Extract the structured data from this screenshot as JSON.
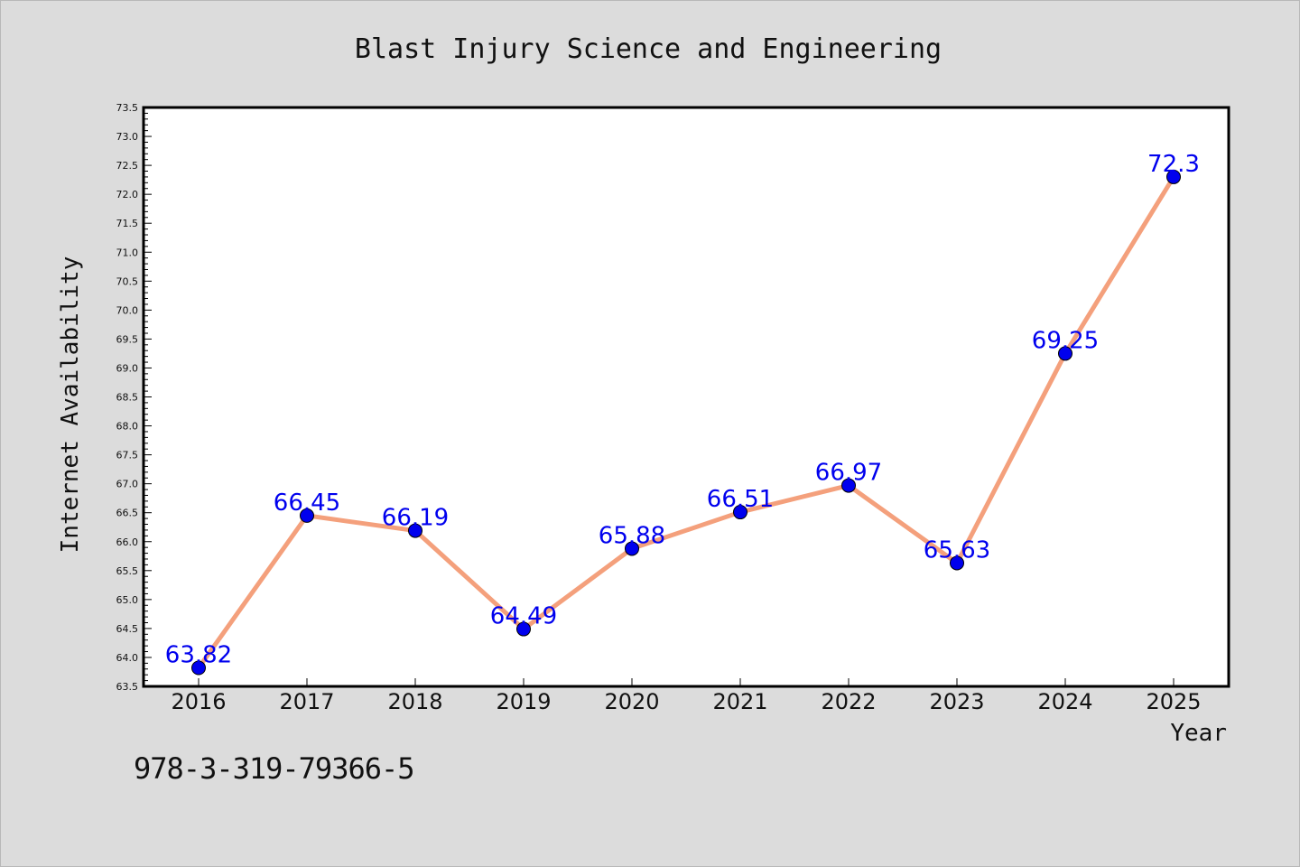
{
  "chart_data": {
    "type": "line",
    "title": "Blast Injury Science and Engineering",
    "xlabel": "Year",
    "ylabel": "Internet Availability",
    "categories": [
      "2016",
      "2017",
      "2018",
      "2019",
      "2020",
      "2021",
      "2022",
      "2023",
      "2024",
      "2025"
    ],
    "series": [
      {
        "values": [
          63.82,
          66.45,
          66.19,
          64.49,
          65.88,
          66.51,
          66.97,
          65.63,
          69.25,
          72.3
        ]
      }
    ],
    "data_labels": [
      "63.82",
      "66.45",
      "66.19",
      "64.49",
      "65.88",
      "66.51",
      "66.97",
      "65.63",
      "69.25",
      "72.3"
    ],
    "ylim": [
      63.5,
      73.5
    ],
    "y_ticks": [
      "63.5",
      "64.0",
      "64.5",
      "65.0",
      "65.5",
      "66.0",
      "66.5",
      "67.0",
      "67.5",
      "68.0",
      "68.5",
      "69.0",
      "69.5",
      "70.0",
      "70.5",
      "71.0",
      "71.5",
      "72.0",
      "72.5",
      "73.0",
      "73.5"
    ],
    "y_minor_step": 0.1,
    "grid": false,
    "legend": "none",
    "colors": {
      "line": "#f4a07c",
      "marker": "#0000ee",
      "label": "#0000ee",
      "background": "#dcdcdc",
      "plot_bg": "#ffffff"
    }
  },
  "footer": {
    "isbn": "978-3-319-79366-5"
  }
}
